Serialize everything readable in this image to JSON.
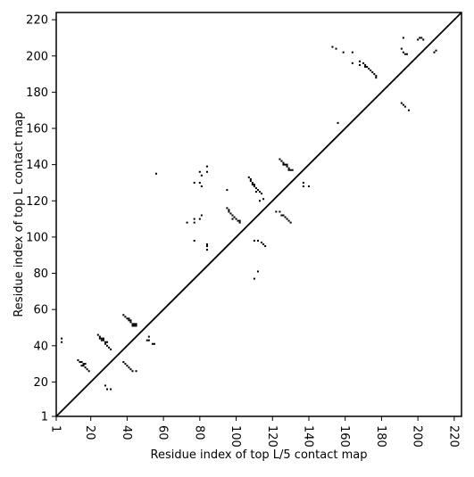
{
  "chart_data": {
    "type": "scatter",
    "title": "",
    "xlabel": "Residue index of top L/5 contact map",
    "ylabel": "Residue index of top L contact map",
    "xlim": [
      1,
      224
    ],
    "ylim": [
      1,
      224
    ],
    "xticks": [
      1,
      20,
      40,
      60,
      80,
      100,
      120,
      140,
      160,
      180,
      200,
      220
    ],
    "yticks": [
      1,
      20,
      40,
      60,
      80,
      100,
      120,
      140,
      160,
      180,
      200,
      220
    ],
    "x_tick_labels": [
      "1",
      "20",
      "40",
      "60",
      "80",
      "100",
      "120",
      "140",
      "160",
      "180",
      "200",
      "220"
    ],
    "y_tick_labels": [
      "1",
      "20",
      "40",
      "60",
      "80",
      "100",
      "120",
      "140",
      "160",
      "180",
      "200",
      "220"
    ],
    "diagonal": true,
    "grid": false,
    "colors": {
      "points": "#000000",
      "background": "#ffffff"
    },
    "series": [
      {
        "values_lower": [
          [
            38,
            31
          ],
          [
            39,
            30
          ],
          [
            40,
            29
          ],
          [
            41,
            28
          ],
          [
            42,
            27
          ],
          [
            43,
            26
          ],
          [
            45,
            26
          ],
          [
            51,
            43
          ],
          [
            52,
            43
          ],
          [
            52,
            45
          ],
          [
            54,
            41
          ],
          [
            55,
            41
          ],
          [
            77,
            98
          ],
          [
            84,
            93
          ],
          [
            84,
            95
          ],
          [
            84,
            96
          ],
          [
            110,
            77
          ],
          [
            110,
            98
          ],
          [
            112,
            98
          ],
          [
            112,
            81
          ],
          [
            114,
            97
          ],
          [
            115,
            96
          ],
          [
            116,
            95
          ],
          [
            122,
            114
          ],
          [
            124,
            114
          ],
          [
            125,
            112
          ],
          [
            126,
            112
          ],
          [
            127,
            111
          ],
          [
            128,
            110
          ],
          [
            129,
            109
          ],
          [
            130,
            108
          ],
          [
            137,
            130
          ],
          [
            137,
            128
          ],
          [
            140,
            128
          ],
          [
            156,
            163
          ],
          [
            191,
            174
          ],
          [
            192,
            173
          ],
          [
            193,
            172
          ],
          [
            195,
            170
          ]
        ],
        "values_upper": [
          [
            4,
            42
          ],
          [
            4,
            44
          ],
          [
            13,
            32
          ],
          [
            14,
            31
          ],
          [
            15,
            31
          ],
          [
            16,
            30
          ],
          [
            16,
            29
          ],
          [
            17,
            28
          ],
          [
            18,
            27
          ],
          [
            19,
            26
          ],
          [
            17,
            30
          ],
          [
            15,
            29
          ],
          [
            24,
            46
          ],
          [
            25,
            45
          ],
          [
            26,
            44
          ],
          [
            27,
            44
          ],
          [
            27,
            43
          ],
          [
            28,
            42
          ],
          [
            28,
            41
          ],
          [
            29,
            40
          ],
          [
            30,
            39
          ],
          [
            31,
            38
          ],
          [
            26,
            43
          ],
          [
            29,
            42
          ],
          [
            25,
            44
          ],
          [
            28,
            18
          ],
          [
            29,
            16
          ],
          [
            31,
            16
          ],
          [
            38,
            57
          ],
          [
            39,
            56
          ],
          [
            40,
            55
          ],
          [
            41,
            55
          ],
          [
            41,
            54
          ],
          [
            42,
            54
          ],
          [
            42,
            53
          ],
          [
            43,
            52
          ],
          [
            43,
            51
          ],
          [
            44,
            52
          ],
          [
            44,
            51
          ],
          [
            45,
            51
          ],
          [
            45,
            52
          ],
          [
            56,
            135
          ],
          [
            73,
            108
          ],
          [
            77,
            108
          ],
          [
            77,
            110
          ],
          [
            77,
            130
          ],
          [
            80,
            110
          ],
          [
            81,
            112
          ],
          [
            80,
            130
          ],
          [
            81,
            128
          ],
          [
            80,
            136
          ],
          [
            81,
            134
          ],
          [
            84,
            136
          ],
          [
            84,
            139
          ],
          [
            95,
            116
          ],
          [
            95,
            126
          ],
          [
            96,
            115
          ],
          [
            96,
            114
          ],
          [
            97,
            113
          ],
          [
            98,
            112
          ],
          [
            99,
            111
          ],
          [
            100,
            110
          ],
          [
            101,
            109
          ],
          [
            102,
            109
          ],
          [
            102,
            108
          ],
          [
            98,
            110
          ],
          [
            107,
            133
          ],
          [
            108,
            132
          ],
          [
            108,
            131
          ],
          [
            109,
            130
          ],
          [
            109,
            129
          ],
          [
            110,
            129
          ],
          [
            110,
            128
          ],
          [
            111,
            127
          ],
          [
            112,
            126
          ],
          [
            113,
            125
          ],
          [
            114,
            124
          ],
          [
            113,
            120
          ],
          [
            115,
            121
          ],
          [
            111,
            125
          ],
          [
            124,
            143
          ],
          [
            125,
            142
          ],
          [
            126,
            141
          ],
          [
            127,
            140
          ],
          [
            128,
            139
          ],
          [
            129,
            138
          ],
          [
            129,
            137
          ],
          [
            130,
            137
          ],
          [
            131,
            137
          ],
          [
            128,
            140
          ],
          [
            126,
            140
          ],
          [
            153,
            205
          ],
          [
            155,
            204
          ],
          [
            159,
            202
          ],
          [
            164,
            202
          ],
          [
            164,
            196
          ],
          [
            168,
            197
          ],
          [
            168,
            195
          ],
          [
            170,
            196
          ],
          [
            171,
            195
          ],
          [
            172,
            194
          ],
          [
            173,
            193
          ],
          [
            174,
            192
          ],
          [
            175,
            191
          ],
          [
            176,
            190
          ],
          [
            177,
            189
          ],
          [
            177,
            188
          ],
          [
            171,
            194
          ],
          [
            191,
            204
          ],
          [
            192,
            210
          ],
          [
            192,
            202
          ],
          [
            193,
            201
          ],
          [
            194,
            201
          ],
          [
            200,
            209
          ],
          [
            201,
            210
          ],
          [
            202,
            210
          ],
          [
            203,
            209
          ],
          [
            209,
            202
          ],
          [
            210,
            203
          ]
        ]
      }
    ]
  }
}
